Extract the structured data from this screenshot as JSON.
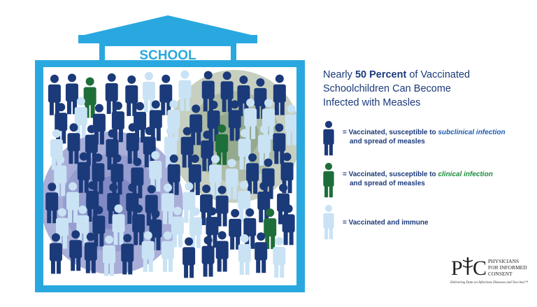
{
  "building": {
    "sign": "SCHOOL"
  },
  "title": {
    "line1": [
      "Nearly ",
      "50 Percent",
      " of Vaccinated"
    ],
    "line2": "Schoolchildren Can Become",
    "line3": "Infected with Measles"
  },
  "legend": [
    {
      "prefix": "= Vaccinated, susceptible to ",
      "emphasis": "subclinical infection",
      "line2": "and spread of measles"
    },
    {
      "prefix": "= Vaccinated, susceptible to ",
      "emphasis": "clinical infection",
      "line2": "and spread of measles"
    },
    {
      "prefix": "= Vaccinated and immune"
    }
  ],
  "logo": {
    "letters": [
      "P",
      "C"
    ],
    "lines": [
      "PHYSICIANS",
      "FOR INFORMED",
      "CONSENT"
    ],
    "tagline": "Delivering Data on Infectious Diseases and Vaccines™"
  }
}
